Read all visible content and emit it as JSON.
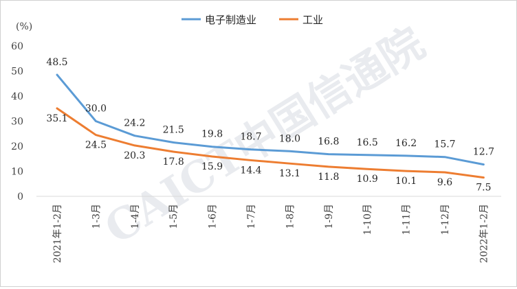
{
  "chart_data": {
    "type": "line",
    "ylabel": "(%)",
    "ylim": [
      0,
      60
    ],
    "yticks": [
      0,
      10,
      20,
      30,
      40,
      50,
      60
    ],
    "categories": [
      "2021年1-2月",
      "1-3月",
      "1-4月",
      "1-5月",
      "1-6月",
      "1-7月",
      "1-8月",
      "1-9月",
      "1-10月",
      "1-11月",
      "1-12月",
      "2022年1-2月"
    ],
    "series": [
      {
        "name": "电子制造业",
        "color": "#5b9bd5",
        "values": [
          48.5,
          30.0,
          24.2,
          21.5,
          19.8,
          18.7,
          18.0,
          16.8,
          16.5,
          16.2,
          15.7,
          12.7
        ]
      },
      {
        "name": "工业",
        "color": "#ed7d31",
        "values": [
          35.1,
          24.5,
          20.3,
          17.8,
          15.9,
          14.4,
          13.1,
          11.8,
          10.9,
          10.1,
          9.6,
          7.5
        ]
      }
    ],
    "legend_position": "top-center",
    "grid": false
  },
  "watermark": "CAICT中国信通院"
}
